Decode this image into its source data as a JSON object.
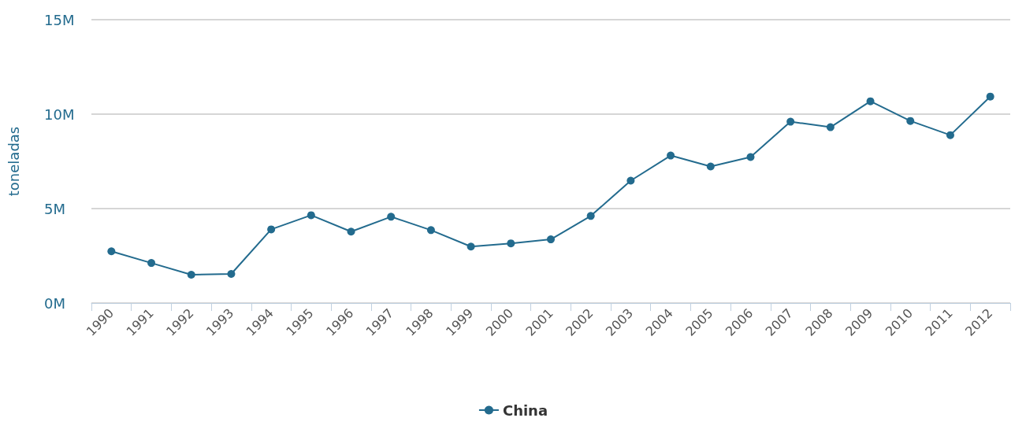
{
  "chart_data": {
    "type": "line",
    "ylabel": "toneladas",
    "categories": [
      "1990",
      "1991",
      "1992",
      "1993",
      "1994",
      "1995",
      "1996",
      "1997",
      "1998",
      "1999",
      "2000",
      "2001",
      "2002",
      "2003",
      "2004",
      "2005",
      "2006",
      "2007",
      "2008",
      "2009",
      "2010",
      "2011",
      "2012"
    ],
    "series": [
      {
        "name": "China",
        "color": "#236b8e",
        "values": [
          2740000,
          2120000,
          1500000,
          1540000,
          3900000,
          4650000,
          3780000,
          4570000,
          3860000,
          2990000,
          3160000,
          3370000,
          4610000,
          6480000,
          7810000,
          7230000,
          7730000,
          9600000,
          9310000,
          10680000,
          9640000,
          8890000,
          10930000
        ]
      }
    ],
    "ylim": [
      0,
      15000000
    ],
    "yticks": [
      {
        "value": 0,
        "label": "0M"
      },
      {
        "value": 5000000,
        "label": "5M"
      },
      {
        "value": 10000000,
        "label": "10M"
      },
      {
        "value": 15000000,
        "label": "15M"
      }
    ],
    "grid": "y",
    "legend": "bottom",
    "marker": "circle",
    "line_style": "solid"
  }
}
